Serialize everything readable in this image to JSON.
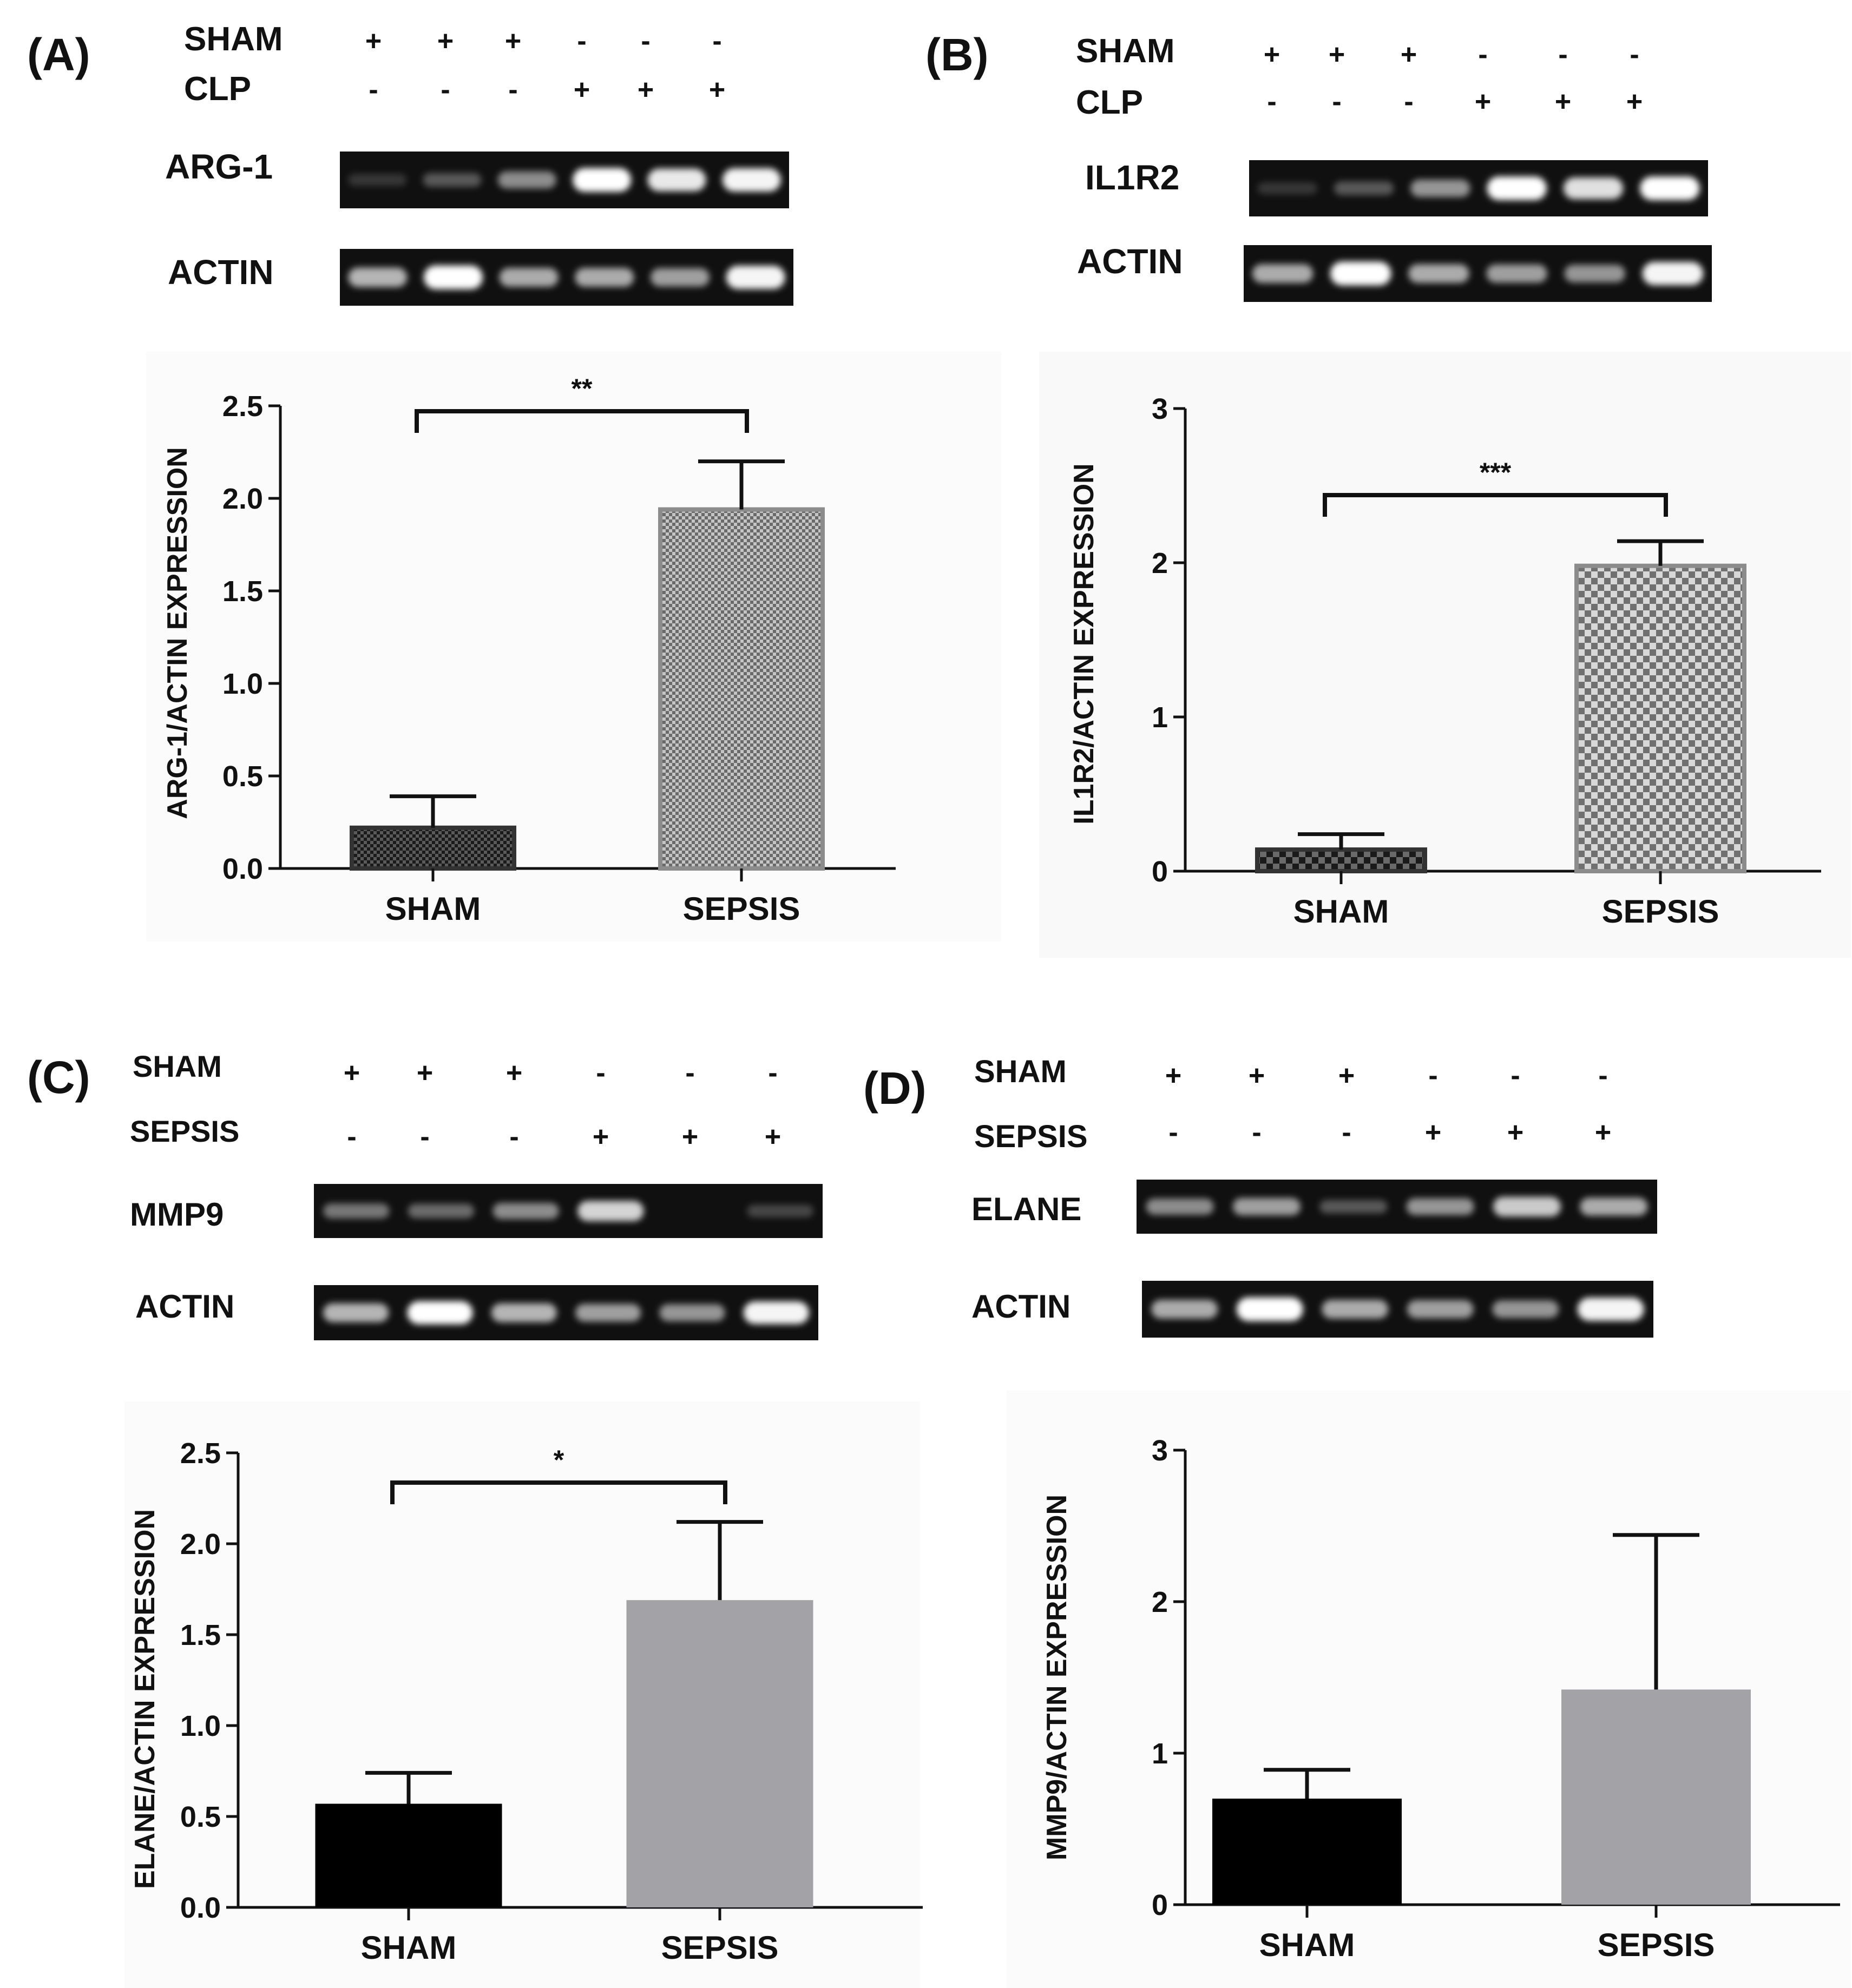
{
  "panels": [
    {
      "letter": "(A)",
      "row_labels": [
        "SHAM",
        "CLP"
      ],
      "row_signs": [
        [
          "+",
          "+",
          "+",
          "-",
          "-",
          "-"
        ],
        [
          "-",
          "-",
          "-",
          "+",
          "+",
          "+"
        ]
      ],
      "gel_labels": [
        "ARG-1",
        "ACTIN"
      ],
      "gel_bands": [
        [
          0.05,
          0.2,
          0.45,
          1.0,
          0.9,
          0.95
        ],
        [
          0.65,
          1.0,
          0.6,
          0.6,
          0.55,
          0.95
        ]
      ]
    },
    {
      "letter": "(B)",
      "row_labels": [
        "SHAM",
        "CLP"
      ],
      "row_signs": [
        [
          "+",
          "+",
          "+",
          "-",
          "-",
          "-"
        ],
        [
          "-",
          "-",
          "-",
          "+",
          "+",
          "+"
        ]
      ],
      "gel_labels": [
        "IL1R2",
        "ACTIN"
      ],
      "gel_bands": [
        [
          0.05,
          0.2,
          0.5,
          1.0,
          0.85,
          1.0
        ],
        [
          0.6,
          1.0,
          0.6,
          0.55,
          0.5,
          0.95
        ]
      ]
    },
    {
      "letter": "(C)",
      "row_labels": [
        "SHAM",
        "SEPSIS"
      ],
      "row_signs": [
        [
          "+",
          "+",
          "+",
          "-",
          "-",
          "-"
        ],
        [
          "-",
          "-",
          "-",
          "+",
          "+",
          "+"
        ]
      ],
      "gel_labels": [
        "MMP9",
        "ACTIN"
      ],
      "gel_bands": [
        [
          0.35,
          0.3,
          0.45,
          0.8,
          0.0,
          0.12
        ],
        [
          0.65,
          1.0,
          0.65,
          0.55,
          0.5,
          0.95
        ]
      ]
    },
    {
      "letter": "(D)",
      "row_labels": [
        "SHAM",
        "SEPSIS"
      ],
      "row_signs": [
        [
          "+",
          "+",
          "+",
          "-",
          "-",
          "-"
        ],
        [
          "-",
          "-",
          "-",
          "+",
          "+",
          "+"
        ]
      ],
      "gel_labels": [
        "ELANE",
        "ACTIN"
      ],
      "gel_bands": [
        [
          0.45,
          0.55,
          0.2,
          0.5,
          0.75,
          0.6
        ],
        [
          0.6,
          1.0,
          0.6,
          0.55,
          0.5,
          0.95
        ]
      ]
    }
  ],
  "chart_data": [
    {
      "type": "bar",
      "title": "",
      "xlabel": "",
      "ylabel": "ARG-1/ACTIN EXPRESSION",
      "categories": [
        "SHAM",
        "SEPSIS"
      ],
      "values": [
        0.22,
        1.94
      ],
      "errors": [
        0.17,
        0.26
      ],
      "ylim": [
        0,
        2.5
      ],
      "yticks": [
        "0.0",
        "0.5",
        "1.0",
        "1.5",
        "2.0",
        "2.5"
      ],
      "significance": "**",
      "colors": [
        "#333333",
        "#8c8c8c"
      ],
      "pattern": "checker-fine"
    },
    {
      "type": "bar",
      "title": "",
      "xlabel": "",
      "ylabel": "IL1R2/ACTIN EXPRESSION",
      "categories": [
        "SHAM",
        "SEPSIS"
      ],
      "values": [
        0.14,
        1.98
      ],
      "errors": [
        0.1,
        0.16
      ],
      "ylim": [
        0,
        3
      ],
      "yticks": [
        "0",
        "1",
        "2",
        "3"
      ],
      "significance": "***",
      "colors": [
        "#333333",
        "#8c8c8c"
      ],
      "pattern": "checker-coarse"
    },
    {
      "type": "bar",
      "title": "",
      "xlabel": "",
      "ylabel": "ELANE/ACTIN EXPRESSION",
      "categories": [
        "SHAM",
        "SEPSIS"
      ],
      "values": [
        0.57,
        1.69
      ],
      "errors": [
        0.17,
        0.43
      ],
      "ylim": [
        0,
        2.5
      ],
      "yticks": [
        "0.0",
        "0.5",
        "1.0",
        "1.5",
        "2.0",
        "2.5"
      ],
      "significance": "*",
      "colors": [
        "#000000",
        "#a3a2a6"
      ],
      "pattern": "solid"
    },
    {
      "type": "bar",
      "title": "",
      "xlabel": "",
      "ylabel": "MMP9/ACTIN EXPRESSION",
      "categories": [
        "SHAM",
        "SEPSIS"
      ],
      "values": [
        0.7,
        1.42
      ],
      "errors": [
        0.19,
        1.02
      ],
      "ylim": [
        0,
        3
      ],
      "yticks": [
        "0",
        "1",
        "2",
        "3"
      ],
      "significance": "",
      "colors": [
        "#000000",
        "#a3a2a6"
      ],
      "pattern": "solid"
    }
  ]
}
